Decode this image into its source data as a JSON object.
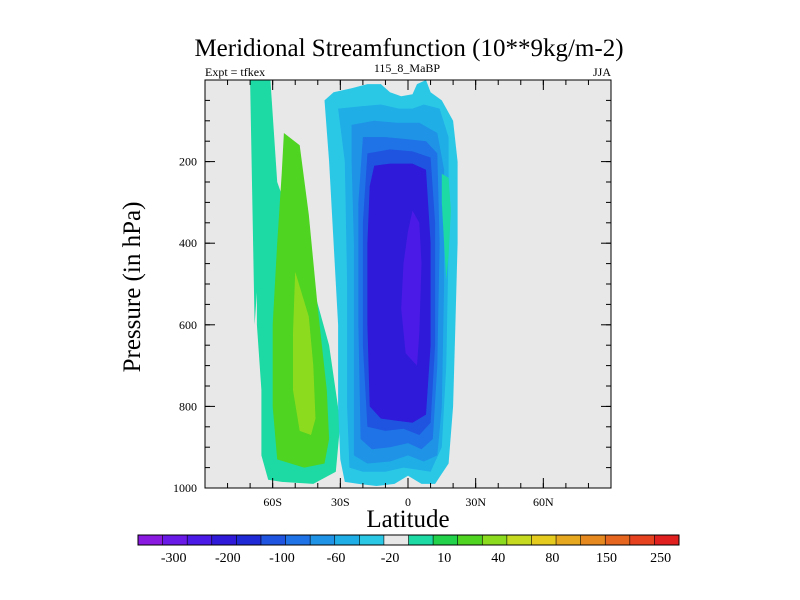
{
  "chart_data": {
    "type": "heatmap",
    "subtype": "filled-contour",
    "title": "Meridional Streamfunction (10**9kg/m-2)",
    "left_label": "Expt = tfkex",
    "center_label": "115_8_MaBP",
    "right_label": "JJA",
    "xlabel": "Latitude",
    "ylabel": "Pressure (in hPa)",
    "xlim": [
      -90,
      90
    ],
    "ylim": [
      1000,
      0
    ],
    "y_reversed": true,
    "x_ticks": [
      {
        "value": -60,
        "label": "60S"
      },
      {
        "value": -30,
        "label": "30S"
      },
      {
        "value": 0,
        "label": "0"
      },
      {
        "value": 30,
        "label": "30N"
      },
      {
        "value": 60,
        "label": "60N"
      }
    ],
    "y_ticks": [
      {
        "value": 200,
        "label": "200"
      },
      {
        "value": 400,
        "label": "400"
      },
      {
        "value": 600,
        "label": "600"
      },
      {
        "value": 800,
        "label": "800"
      },
      {
        "value": 1000,
        "label": "1000"
      }
    ],
    "missing_color": "#e8e8e8",
    "colorbar": {
      "colors": [
        "#8a1ae0",
        "#6a1ae6",
        "#4b1ae6",
        "#2f1ad9",
        "#1f2ad6",
        "#1f54e0",
        "#1f73e6",
        "#1f93e6",
        "#1faee6",
        "#2bc8e6",
        "#e8e8e8",
        "#1dd9a3",
        "#21d24a",
        "#4ed421",
        "#8ddb1f",
        "#c6db1f",
        "#e6cb1f",
        "#e6a81f",
        "#e6891f",
        "#e6661f",
        "#e6421f",
        "#e01f1f"
      ],
      "tick_labels": [
        "-300",
        "-200",
        "-100",
        "-60",
        "-20",
        "10",
        "40",
        "80",
        "150",
        "250"
      ]
    },
    "fields": [
      {
        "value": 10,
        "color": "#1dd9a3",
        "polygon": [
          [
            -70,
            0
          ],
          [
            -61,
            0
          ],
          [
            -58,
            250
          ],
          [
            -44,
            470
          ],
          [
            -35,
            650
          ],
          [
            -30,
            840
          ],
          [
            -32,
            960
          ],
          [
            -42,
            990
          ],
          [
            -56,
            985
          ],
          [
            -62,
            980
          ],
          [
            -65,
            920
          ],
          [
            -65,
            760
          ],
          [
            -67,
            600
          ],
          [
            -67,
            520
          ],
          [
            -68,
            600
          ],
          [
            -70,
            0
          ]
        ]
      },
      {
        "value": 40,
        "color": "#4ed421",
        "polygon": [
          [
            -55,
            130
          ],
          [
            -48,
            160
          ],
          [
            -44,
            330
          ],
          [
            -40,
            560
          ],
          [
            -36,
            760
          ],
          [
            -35,
            880
          ],
          [
            -37,
            940
          ],
          [
            -46,
            950
          ],
          [
            -58,
            930
          ],
          [
            -60,
            800
          ],
          [
            -60,
            600
          ],
          [
            -58,
            400
          ],
          [
            -56,
            230
          ]
        ]
      },
      {
        "value": 80,
        "color": "#8ddb1f",
        "polygon": [
          [
            -50,
            470
          ],
          [
            -44,
            580
          ],
          [
            -42,
            700
          ],
          [
            -41,
            830
          ],
          [
            -43,
            870
          ],
          [
            -48,
            860
          ],
          [
            -51,
            760
          ],
          [
            -51,
            620
          ]
        ]
      },
      {
        "value": -10,
        "color": "#2bc8e6",
        "polygon": [
          [
            -37,
            50
          ],
          [
            -33,
            30
          ],
          [
            -25,
            20
          ],
          [
            -18,
            10
          ],
          [
            -12,
            10
          ],
          [
            -8,
            30
          ],
          [
            -3,
            40
          ],
          [
            2,
            35
          ],
          [
            4,
            10
          ],
          [
            8,
            0
          ],
          [
            10,
            30
          ],
          [
            15,
            50
          ],
          [
            20,
            100
          ],
          [
            22,
            200
          ],
          [
            22,
            400
          ],
          [
            21,
            600
          ],
          [
            20,
            800
          ],
          [
            18,
            940
          ],
          [
            12,
            990
          ],
          [
            6,
            990
          ],
          [
            0,
            970
          ],
          [
            -6,
            990
          ],
          [
            -14,
            995
          ],
          [
            -22,
            990
          ],
          [
            -28,
            985
          ],
          [
            -30,
            930
          ],
          [
            -31,
            800
          ],
          [
            -31,
            600
          ],
          [
            -33,
            400
          ],
          [
            -35,
            200
          ]
        ]
      },
      {
        "value": -20,
        "color": "#1faee6",
        "polygon": [
          [
            -31,
            70
          ],
          [
            -22,
            65
          ],
          [
            -12,
            60
          ],
          [
            -4,
            70
          ],
          [
            2,
            70
          ],
          [
            7,
            60
          ],
          [
            14,
            70
          ],
          [
            18,
            140
          ],
          [
            18,
            400
          ],
          [
            17,
            700
          ],
          [
            15,
            900
          ],
          [
            10,
            960
          ],
          [
            4,
            955
          ],
          [
            -2,
            950
          ],
          [
            -10,
            960
          ],
          [
            -20,
            960
          ],
          [
            -26,
            950
          ],
          [
            -27,
            800
          ],
          [
            -27,
            500
          ],
          [
            -28,
            200
          ]
        ]
      },
      {
        "value": -40,
        "color": "#1f93e6",
        "polygon": [
          [
            -25,
            110
          ],
          [
            -15,
            100
          ],
          [
            -5,
            105
          ],
          [
            5,
            105
          ],
          [
            13,
            130
          ],
          [
            16,
            220
          ],
          [
            16,
            500
          ],
          [
            15,
            800
          ],
          [
            13,
            920
          ],
          [
            7,
            935
          ],
          [
            0,
            920
          ],
          [
            -8,
            935
          ],
          [
            -18,
            940
          ],
          [
            -24,
            920
          ],
          [
            -24,
            700
          ],
          [
            -24,
            400
          ],
          [
            -25,
            200
          ]
        ]
      },
      {
        "value": -60,
        "color": "#1f73e6",
        "polygon": [
          [
            -20,
            140
          ],
          [
            -10,
            140
          ],
          [
            0,
            145
          ],
          [
            8,
            150
          ],
          [
            13,
            180
          ],
          [
            14,
            400
          ],
          [
            13,
            700
          ],
          [
            11,
            880
          ],
          [
            6,
            905
          ],
          [
            0,
            890
          ],
          [
            -8,
            900
          ],
          [
            -16,
            905
          ],
          [
            -21,
            880
          ],
          [
            -22,
            600
          ],
          [
            -22,
            300
          ]
        ]
      },
      {
        "value": -80,
        "color": "#1f54e0",
        "polygon": [
          [
            -18,
            180
          ],
          [
            -8,
            170
          ],
          [
            2,
            175
          ],
          [
            10,
            190
          ],
          [
            12,
            350
          ],
          [
            12,
            650
          ],
          [
            10,
            840
          ],
          [
            5,
            870
          ],
          [
            -2,
            855
          ],
          [
            -10,
            860
          ],
          [
            -18,
            850
          ],
          [
            -20,
            650
          ],
          [
            -20,
            350
          ]
        ]
      },
      {
        "value": -100,
        "color": "#2f1ad9",
        "polygon": [
          [
            -15,
            210
          ],
          [
            -8,
            205
          ],
          [
            2,
            205
          ],
          [
            8,
            220
          ],
          [
            10,
            400
          ],
          [
            10,
            650
          ],
          [
            8,
            820
          ],
          [
            2,
            840
          ],
          [
            -5,
            835
          ],
          [
            -12,
            830
          ],
          [
            -17,
            800
          ],
          [
            -18,
            600
          ],
          [
            -18,
            400
          ],
          [
            -17,
            260
          ]
        ]
      },
      {
        "value": -150,
        "color": "#4b1ae6",
        "polygon": [
          [
            2,
            320
          ],
          [
            5,
            350
          ],
          [
            6,
            450
          ],
          [
            5,
            620
          ],
          [
            4,
            700
          ],
          [
            -1,
            670
          ],
          [
            -3,
            560
          ],
          [
            -2,
            450
          ],
          [
            0,
            370
          ]
        ]
      },
      {
        "value": 10,
        "color": "#1dd9a3",
        "polygon": [
          [
            15,
            230
          ],
          [
            18,
            240
          ],
          [
            19,
            320
          ],
          [
            18,
            430
          ],
          [
            17,
            490
          ],
          [
            16,
            400
          ],
          [
            15,
            300
          ]
        ]
      }
    ]
  }
}
